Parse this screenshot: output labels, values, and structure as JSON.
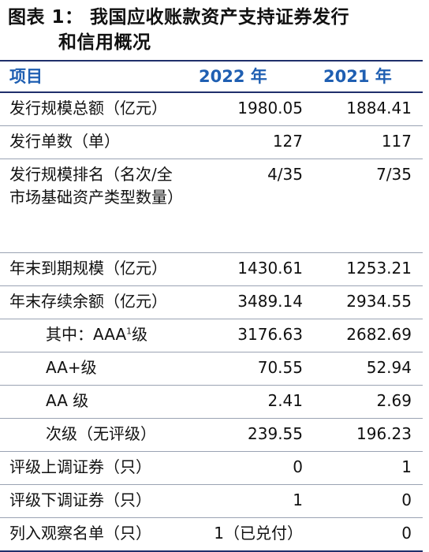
{
  "title": {
    "line1": "图表 1：  我国应收账款资产支持证券发行",
    "line2": "和信用概况"
  },
  "header": {
    "item": "项目",
    "year1": "2022 年",
    "year2": "2021 年"
  },
  "rows": [
    {
      "label": "发行规模总额（亿元）",
      "v2022": "1980.05",
      "v2021": "1884.41"
    },
    {
      "label": "发行单数（单）",
      "v2022": "127",
      "v2021": "117"
    },
    {
      "label": "发行规模排名（名次/全市场基础资产类型数量）",
      "v2022": "4/35",
      "v2021": "7/35"
    },
    {
      "label": "年末到期规模（亿元）",
      "v2022": "1430.61",
      "v2021": "1253.21"
    },
    {
      "label": "年末存续余额（亿元）",
      "v2022": "3489.14",
      "v2021": "2934.55"
    },
    {
      "label": "其中：AAA",
      "label_sup": "1",
      "label_tail": "级",
      "v2022": "3176.63",
      "v2021": "2682.69"
    },
    {
      "label": "AA+级",
      "v2022": "70.55",
      "v2021": "52.94"
    },
    {
      "label": "AA 级",
      "v2022": "2.41",
      "v2021": "2.69"
    },
    {
      "label": "次级（无评级）",
      "v2022": "239.55",
      "v2021": "196.23"
    },
    {
      "label": "评级上调证券（只）",
      "v2022": "0",
      "v2021": "1"
    },
    {
      "label": "评级下调证券（只）",
      "v2022": "1",
      "v2021": "0"
    },
    {
      "label": "列入观察名单（只）",
      "v2022": "1（已兑付）",
      "v2021": "0"
    }
  ]
}
